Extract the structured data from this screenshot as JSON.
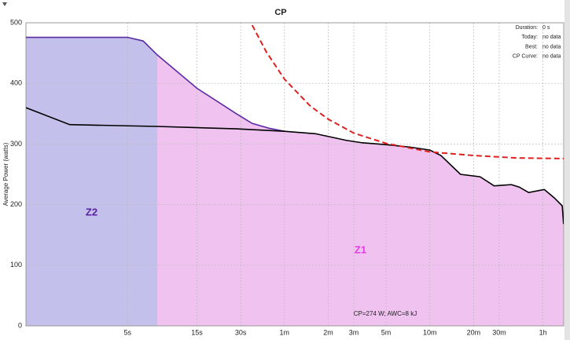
{
  "chart_data": {
    "type": "line",
    "title": "CP",
    "ylabel": "Average Power (watts)",
    "xscale": "log",
    "xlim": [
      1,
      5000
    ],
    "ylim": [
      0,
      500
    ],
    "xticks": [
      {
        "value": 5,
        "label": "5s"
      },
      {
        "value": 15,
        "label": "15s"
      },
      {
        "value": 30,
        "label": "30s"
      },
      {
        "value": 60,
        "label": "1m"
      },
      {
        "value": 120,
        "label": "2m"
      },
      {
        "value": 180,
        "label": "3m"
      },
      {
        "value": 300,
        "label": "5m"
      },
      {
        "value": 600,
        "label": "10m"
      },
      {
        "value": 1200,
        "label": "20m"
      },
      {
        "value": 1800,
        "label": "30m"
      },
      {
        "value": 3600,
        "label": "1h"
      }
    ],
    "yticks": [
      0,
      100,
      200,
      300,
      400,
      500
    ],
    "grid": true,
    "series": [
      {
        "color": "#5b2ba3",
        "x": [
          1,
          5,
          6.4,
          8,
          15,
          28,
          36,
          47,
          60
        ],
        "values": [
          476,
          476,
          470,
          447,
          392,
          350,
          334,
          326,
          321
        ]
      },
      {
        "color": "#000000",
        "x": [
          1,
          2,
          5,
          8,
          28,
          60,
          98,
          160,
          206,
          300,
          435,
          600,
          715,
          975,
          1330,
          1660,
          2185,
          2470,
          2870,
          3675,
          4315,
          4885,
          4990
        ],
        "values": [
          360,
          332,
          330,
          329,
          325,
          321,
          317,
          306,
          302,
          299,
          295,
          290,
          281,
          250,
          246,
          231,
          233,
          229,
          220,
          225,
          211,
          198,
          168
        ]
      },
      {
        "color": "#e02020",
        "dashed": true,
        "x": [
          36,
          45,
          60,
          90,
          120,
          180,
          300,
          600,
          1200,
          2400,
          5000
        ],
        "values": [
          496,
          452,
          407,
          363,
          341,
          318,
          301,
          287,
          281,
          277,
          276
        ]
      }
    ],
    "zones": [
      {
        "label": "Z2",
        "color": "#c4c0ec",
        "text_color": "#5a1fa0",
        "from": 1,
        "to": 8
      },
      {
        "label": "Z1",
        "color": "#efc2ef",
        "text_color": "#e33be3",
        "from": 8,
        "to": 5000
      }
    ],
    "annotation": "CP=274 W; AWC=8 kJ",
    "info": [
      {
        "label": "Duration:",
        "value": "0 s"
      },
      {
        "label": "Today:",
        "value": "no data"
      },
      {
        "label": "Best:",
        "value": "no data"
      },
      {
        "label": "CP Curve:",
        "value": "no data"
      }
    ]
  }
}
